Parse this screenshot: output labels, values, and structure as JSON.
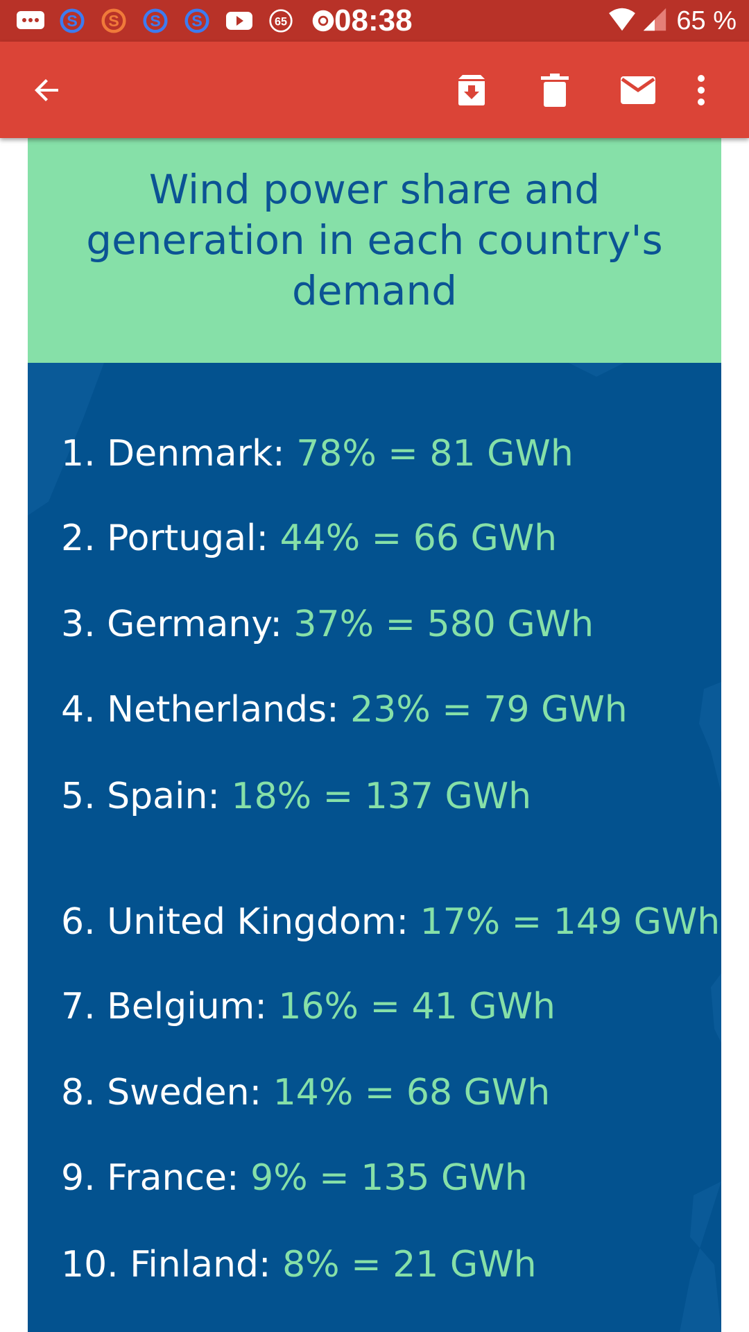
{
  "status_bar": {
    "time": "08:38",
    "battery": "65 %",
    "notification_badge": "65",
    "icons": [
      "messages-icon",
      "skype-icon",
      "skype-icon",
      "skype-icon",
      "skype-icon",
      "youtube-icon",
      "badge-65-icon",
      "chrome-icon",
      "wifi-icon",
      "signal-icon"
    ]
  },
  "toolbar": {
    "back_icon": "arrow-back-icon",
    "archive_icon": "archive-icon",
    "delete_icon": "trash-icon",
    "mark_unread_icon": "mail-icon",
    "more_icon": "more-vert-icon",
    "color": "#db4437"
  },
  "email": {
    "header_title": "Wind power share and generation in each country's demand",
    "rows": [
      {
        "name": "1. Denmark:",
        "value": "78% = 81 GWh"
      },
      {
        "name": "2. Portugal:",
        "value": "44% = 66 GWh"
      },
      {
        "name": "3. Germany:",
        "value": "37% = 580 GWh"
      },
      {
        "name": "4. Netherlands:",
        "value": "23% = 79 GWh"
      },
      {
        "name": "5. Spain:",
        "value": "18% = 137 GWh"
      },
      {
        "name": "6. United Kingdom:",
        "value": "17% = 149 GWh"
      },
      {
        "name": "7. Belgium:",
        "value": "16% = 41 GWh"
      },
      {
        "name": "8. Sweden:",
        "value": "14% = 68 GWh"
      },
      {
        "name": "9. France:",
        "value": "9% = 135 GWh"
      },
      {
        "name": "10. Finland:",
        "value": "8% = 21 GWh"
      }
    ],
    "colors": {
      "header_bg": "#86e0a8",
      "header_text": "#0b5394",
      "list_bg": "#03528f",
      "value_text": "#86e0a8"
    }
  }
}
